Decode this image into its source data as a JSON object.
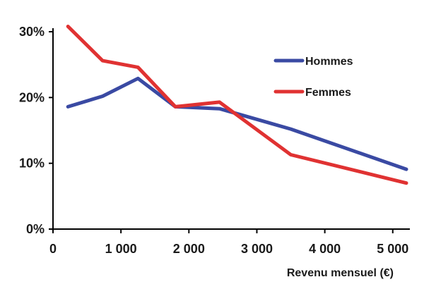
{
  "chart_data": {
    "type": "line",
    "title": "",
    "xlabel": "Revenu mensuel (€)",
    "ylabel": "",
    "xlim": [
      0,
      5200
    ],
    "ylim": [
      0,
      30
    ],
    "grid": false,
    "legend_position": "top-right",
    "x_ticks": [
      {
        "value": 0,
        "label": "0"
      },
      {
        "value": 1000,
        "label": "1 000"
      },
      {
        "value": 2000,
        "label": "2 000"
      },
      {
        "value": 3000,
        "label": "3 000"
      },
      {
        "value": 4000,
        "label": "4 000"
      },
      {
        "value": 5000,
        "label": "5 000"
      }
    ],
    "y_ticks": [
      {
        "value": 0,
        "label": "0%"
      },
      {
        "value": 10,
        "label": "10%"
      },
      {
        "value": 20,
        "label": "20%"
      },
      {
        "value": 30,
        "label": "30%"
      }
    ],
    "series": [
      {
        "name": "Hommes",
        "color": "#3a4aa3",
        "points": [
          {
            "x": 220,
            "y": 18.6
          },
          {
            "x": 730,
            "y": 20.2
          },
          {
            "x": 1250,
            "y": 22.9
          },
          {
            "x": 1800,
            "y": 18.6
          },
          {
            "x": 2450,
            "y": 18.3
          },
          {
            "x": 3500,
            "y": 15.2
          },
          {
            "x": 5200,
            "y": 9.1
          }
        ]
      },
      {
        "name": "Femmes",
        "color": "#e03232",
        "points": [
          {
            "x": 220,
            "y": 30.8
          },
          {
            "x": 730,
            "y": 25.6
          },
          {
            "x": 1250,
            "y": 24.6
          },
          {
            "x": 1800,
            "y": 18.6
          },
          {
            "x": 2450,
            "y": 19.3
          },
          {
            "x": 3500,
            "y": 11.3
          },
          {
            "x": 5200,
            "y": 7.0
          }
        ]
      }
    ]
  }
}
